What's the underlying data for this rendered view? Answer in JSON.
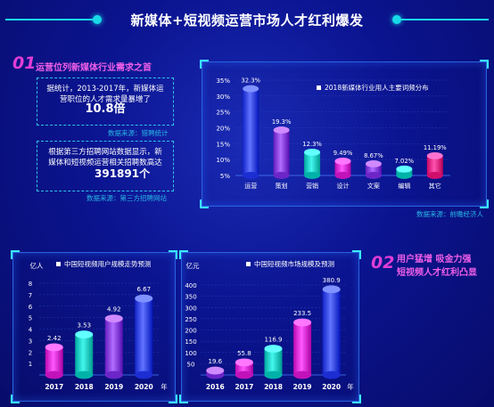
{
  "page": {
    "title": "新媒体+短视频运营市场人才红利爆发"
  },
  "section1": {
    "number": "01",
    "title": "运营位列新媒体行业需求之首",
    "box1_text": "据统计，2013-2017年，新媒体运营职位的人才需求量暴增了",
    "box1_highlight": "10.8倍",
    "box1_source": "数据来源：猎聘统计",
    "box2_text": "根据第三方招聘网站数据显示，新媒体和短视频运营相关招聘数高达",
    "box2_highlight": "391891个",
    "box2_source": "数据来源：第三方招聘网站"
  },
  "section2": {
    "number": "02",
    "line1": "用户猛增 吸金力强",
    "line2": "短视频人才红利凸显"
  },
  "colors": {
    "blue": "#3a4cf0",
    "purple": "#8a44e6",
    "teal": "#1bd0c6",
    "magenta": "#e030d8",
    "pink": "#f02c8a",
    "accent": "#18d9e8"
  },
  "chart_data": [
    {
      "type": "bar",
      "title": "2018新媒体行业用人主要词频分布",
      "categories": [
        "运营",
        "策划",
        "营销",
        "设计",
        "文案",
        "编辑",
        "其它"
      ],
      "values": [
        32.3,
        19.3,
        12.3,
        9.49,
        8.67,
        7.02,
        11.19
      ],
      "value_labels": [
        "32.3%",
        "19.3%",
        "12.3%",
        "9.49%",
        "8.67%",
        "7.02%",
        "11.19%"
      ],
      "ylim": [
        5,
        35
      ],
      "yticks": [
        "5%",
        "10%",
        "15%",
        "20%",
        "25%",
        "30%",
        "35%"
      ],
      "bar_colors": [
        "#3a4cf0",
        "#8a44e6",
        "#1bd0c6",
        "#e030d8",
        "#8a44e6",
        "#1bd0c6",
        "#f02c8a"
      ],
      "source": "数据来源：前瞻经济人",
      "legend": "top-center"
    },
    {
      "type": "bar",
      "title": "中国短视频用户规模走势预测",
      "ylabel": "亿人",
      "xunit": "年",
      "categories": [
        "2017",
        "2018",
        "2019",
        "2020"
      ],
      "values": [
        2.42,
        3.53,
        4.92,
        6.67
      ],
      "value_labels": [
        "2.42",
        "3.53",
        "4.92",
        "6.67"
      ],
      "ylim": [
        0,
        8
      ],
      "yticks": [
        "1",
        "2",
        "3",
        "4",
        "5",
        "6",
        "7",
        "8"
      ],
      "bar_colors": [
        "#e030d8",
        "#1bd0c6",
        "#8a44e6",
        "#3a4cf0"
      ],
      "legend": "top-left"
    },
    {
      "type": "bar",
      "title": "中国短视频市场规模及预测",
      "ylabel": "亿元",
      "xunit": "年",
      "categories": [
        "2016",
        "2017",
        "2018",
        "2019",
        "2020"
      ],
      "values": [
        19.6,
        55.8,
        116.9,
        233.5,
        380.9
      ],
      "value_labels": [
        "19.6",
        "55.8",
        "116.9",
        "233.5",
        "380.9"
      ],
      "ylim": [
        0,
        400
      ],
      "yticks": [
        "50",
        "100",
        "150",
        "200",
        "250",
        "300",
        "350",
        "400"
      ],
      "bar_colors": [
        "#8a44e6",
        "#e030d8",
        "#1bd0c6",
        "#e030d8",
        "#3a4cf0"
      ],
      "legend": "top-left"
    }
  ]
}
